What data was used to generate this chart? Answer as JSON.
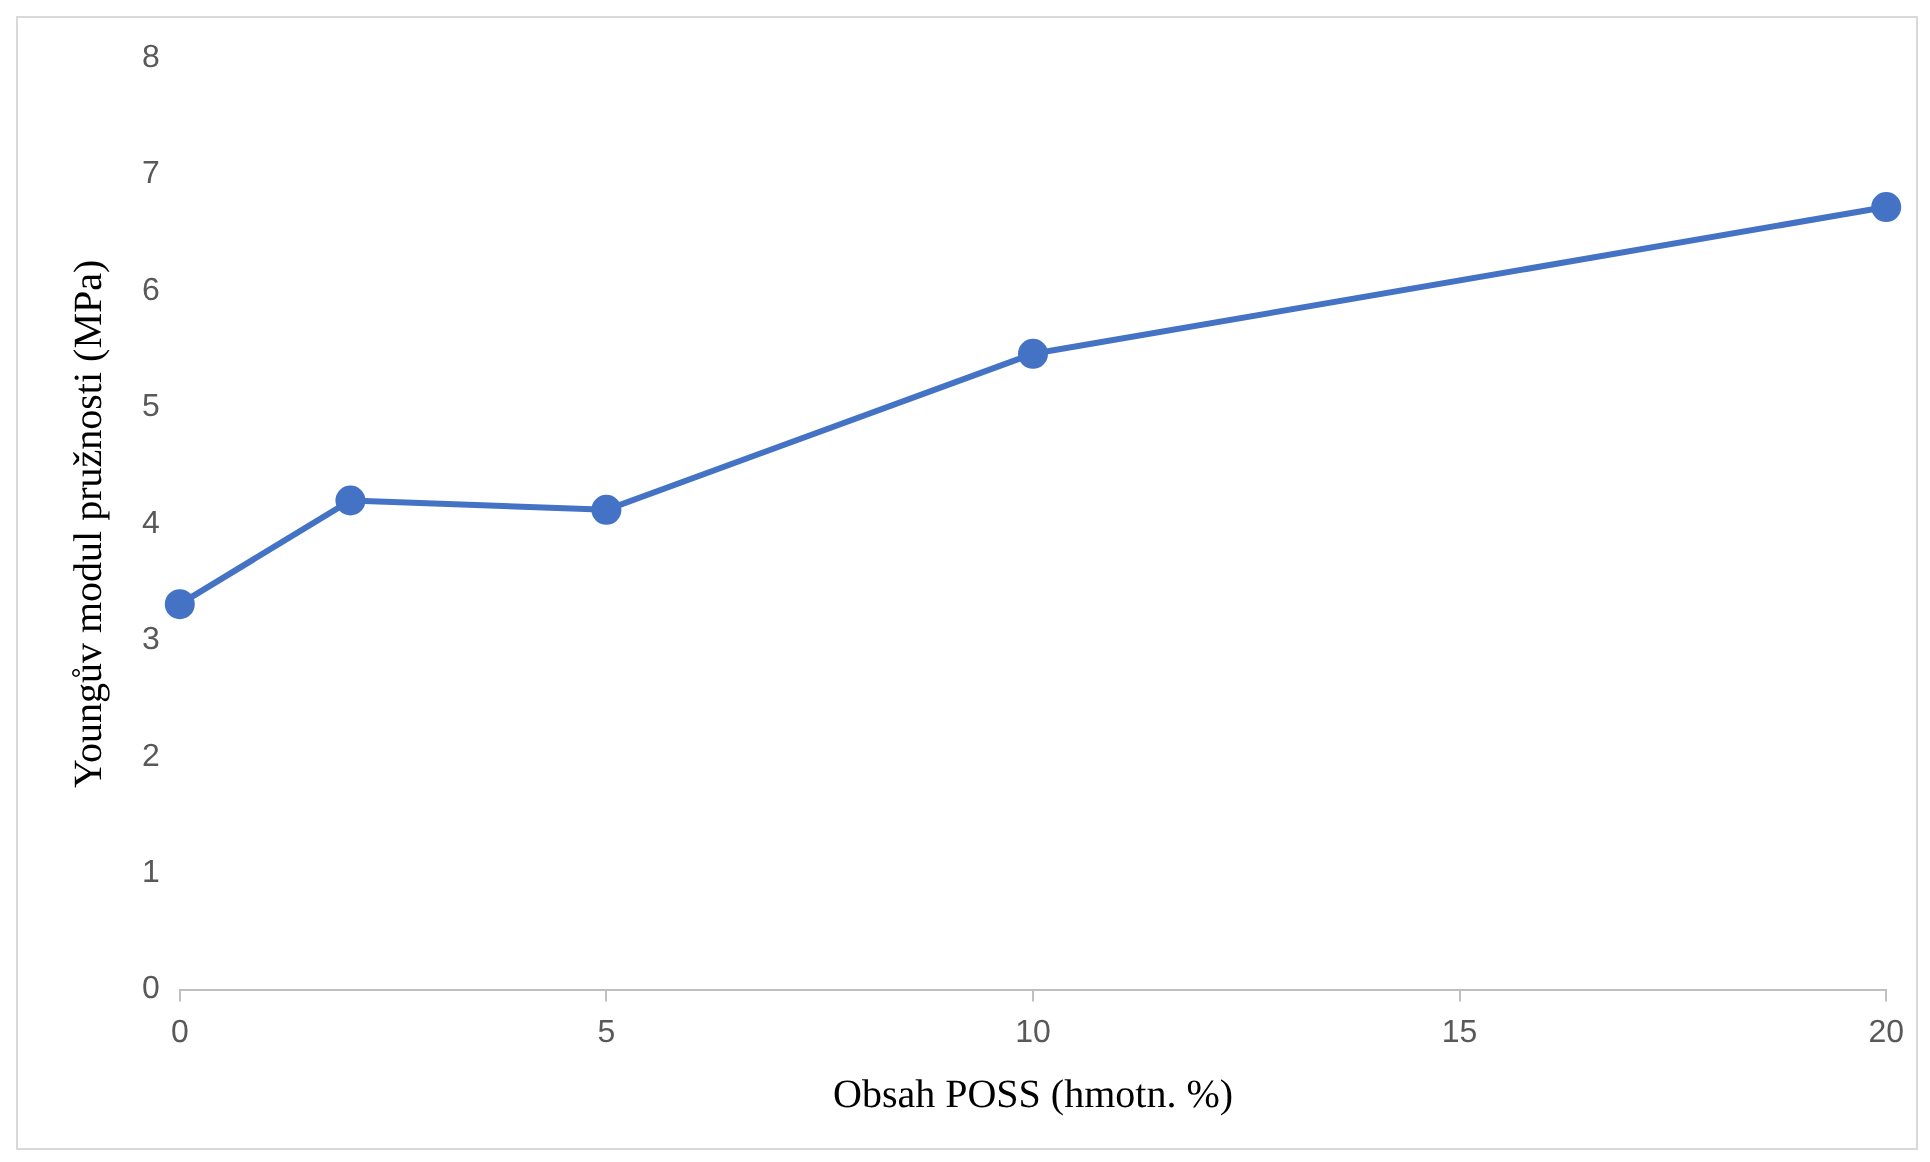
{
  "chart_data": {
    "type": "line",
    "xlabel": "Obsah POSS (hmotn. %)",
    "ylabel": "Youngův modul pružnosti (MPa)",
    "x": [
      0,
      2,
      5,
      10,
      20
    ],
    "series": [
      {
        "color": "#4472c4",
        "values": [
          3.31,
          4.2,
          4.12,
          5.46,
          6.72
        ]
      }
    ],
    "xlim": [
      0,
      20
    ],
    "xticks": [
      0,
      5,
      10,
      15,
      20
    ],
    "ylim": [
      0,
      8
    ],
    "yticks": [
      0,
      1,
      2,
      3,
      4,
      5,
      6,
      7,
      8
    ],
    "grid": false,
    "legend": false,
    "marker": "circle",
    "line_style": "solid"
  }
}
